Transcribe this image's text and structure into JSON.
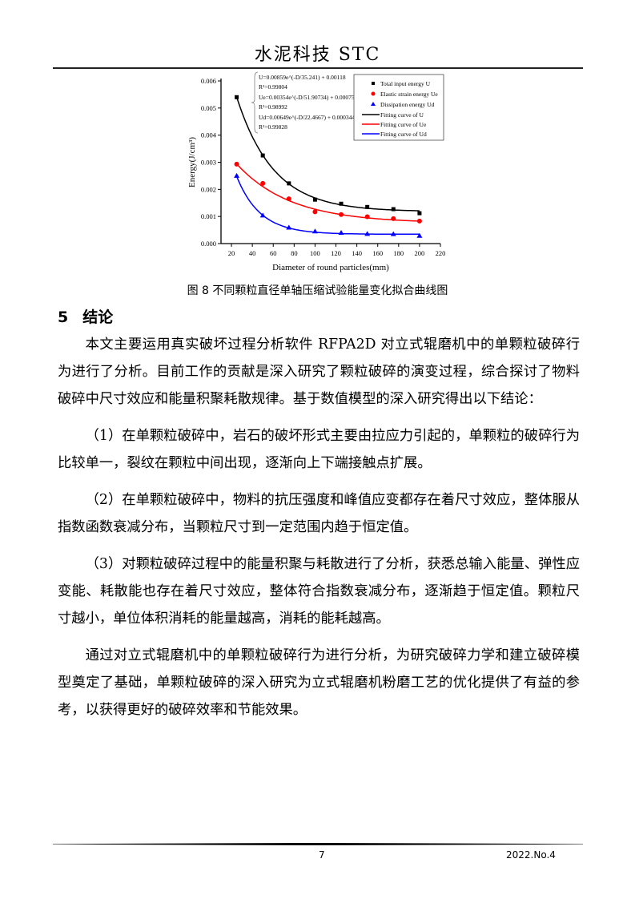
{
  "header": {
    "journal": "水泥科技 STC"
  },
  "chart_data": {
    "type": "scatter",
    "xlabel": "Diameter of round particles(mm)",
    "ylabel": "Energy(J/cm³)",
    "xlim": [
      10,
      220
    ],
    "ylim": [
      0,
      0.006
    ],
    "xticks": [
      20,
      40,
      60,
      80,
      100,
      120,
      140,
      160,
      180,
      200,
      220
    ],
    "yticks": [
      "0.000",
      "0.001",
      "0.002",
      "0.003",
      "0.004",
      "0.005",
      "0.006"
    ],
    "legend_placement": "top-right",
    "x": [
      25,
      50,
      75,
      100,
      125,
      150,
      175,
      200
    ],
    "series": [
      {
        "name": "Total input energy U",
        "marker": "square",
        "color": "#000000",
        "values": [
          0.0054,
          0.00325,
          0.00222,
          0.00162,
          0.00147,
          0.00135,
          0.00127,
          0.00112
        ]
      },
      {
        "name": "Elastic strain energy Ue",
        "marker": "circle",
        "color": "#ff0000",
        "values": [
          0.00293,
          0.00222,
          0.00165,
          0.00117,
          0.00107,
          0.00099,
          0.00092,
          0.00083
        ]
      },
      {
        "name": "Dissipation energy Ud",
        "marker": "triangle",
        "color": "#0000ff",
        "values": [
          0.0025,
          0.00104,
          0.00059,
          0.00045,
          0.0004,
          0.00036,
          0.00035,
          0.00029
        ]
      }
    ],
    "fits": [
      {
        "name": "Fitting curve of U",
        "color": "#000000",
        "a": 0.00859,
        "t": 35.241,
        "c": 0.00118,
        "equation": "U=0.00859e^(-D/35.241) + 0.00118",
        "r2": "R²=0.99804"
      },
      {
        "name": "Fitting curve of Ue",
        "color": "#ff0000",
        "a": 0.00354,
        "t": 51.90734,
        "c": 0.000752,
        "equation": "Ue=0.00354e^(-D/51.90734) + 0.000752",
        "r2": "R²=0.98992"
      },
      {
        "name": "Fitting curve of Ud",
        "color": "#0000ff",
        "a": 0.00649,
        "t": 22.4667,
        "c": 0.000344,
        "equation": "Ud=0.00649e^(-D/22.4667) + 0.000344",
        "r2": "R²=0.99828"
      }
    ]
  },
  "caption": "图 8  不同颗粒直径单轴压缩试验能量变化拟合曲线图",
  "section": {
    "number": "5",
    "title": "结论"
  },
  "paragraphs": [
    "本文主要运用真实破坏过程分析软件 RFPA2D 对立式辊磨机中的单颗粒破碎行为进行了分析。目前工作的贡献是深入研究了颗粒破碎的演变过程，综合探讨了物料破碎中尺寸效应和能量积聚耗散规律。基于数值模型的深入研究得出以下结论：",
    "（1）在单颗粒破碎中，岩石的破坏形式主要由拉应力引起的，单颗粒的破碎行为比较单一，裂纹在颗粒中间出现，逐渐向上下端接触点扩展。",
    "（2）在单颗粒破碎中，物料的抗压强度和峰值应变都存在着尺寸效应，整体服从指数函数衰减分布，当颗粒尺寸到一定范围内趋于恒定值。",
    "（3）对颗粒破碎过程中的能量积聚与耗散进行了分析，获悉总输入能量、弹性应变能、耗散能也存在着尺寸效应，整体符合指数衰减分布，逐渐趋于恒定值。颗粒尺寸越小，单位体积消耗的能量越高，消耗的能耗越高。",
    "通过对立式辊磨机中的单颗粒破碎行为进行分析，为研究破碎力学和建立破碎模型奠定了基础，单颗粒破碎的深入研究为立式辊磨机粉磨工艺的优化提供了有益的参考，以获得更好的破碎效率和节能效果。"
  ],
  "footer": {
    "page": "7",
    "issue": "2022.No.4"
  }
}
